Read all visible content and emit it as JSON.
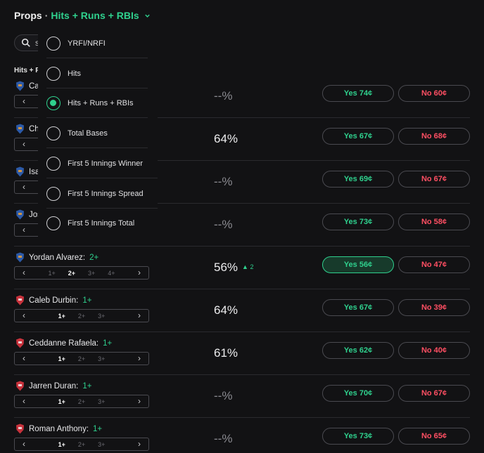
{
  "header": {
    "props_label": "Props",
    "separator": "·",
    "market_label": "Hits + Runs + RBIs"
  },
  "search": {
    "value": "s"
  },
  "section_label": "Hits + R",
  "dropdown": {
    "options": [
      {
        "label": "YRFI/NRFI",
        "selected": false
      },
      {
        "label": "Hits",
        "selected": false
      },
      {
        "label": "Hits + Runs + RBIs",
        "selected": true
      },
      {
        "label": "Total Bases",
        "selected": false
      },
      {
        "label": "First 5 Innings Winner",
        "selected": false
      },
      {
        "label": "First 5 Innings Spread",
        "selected": false
      },
      {
        "label": "First 5 Innings Total",
        "selected": false
      }
    ]
  },
  "rows": [
    {
      "name": "Ca",
      "line": "",
      "team": "blue",
      "steps": [],
      "selected_step": "",
      "pct": "--%",
      "trend": "",
      "yes": "Yes 74¢",
      "no": "No 60¢",
      "yes_active": false
    },
    {
      "name": "Ch",
      "line": "",
      "team": "blue",
      "steps": [],
      "selected_step": "",
      "pct": "64%",
      "trend": "",
      "yes": "Yes 67¢",
      "no": "No 68¢",
      "yes_active": false
    },
    {
      "name": "Isa",
      "line": "",
      "team": "blue",
      "steps": [],
      "selected_step": "",
      "pct": "--%",
      "trend": "",
      "yes": "Yes 69¢",
      "no": "No 67¢",
      "yes_active": false
    },
    {
      "name": "Jos",
      "line": "",
      "team": "blue",
      "steps": [],
      "selected_step": "",
      "pct": "--%",
      "trend": "",
      "yes": "Yes 73¢",
      "no": "No 58¢",
      "yes_active": false
    },
    {
      "name": "Yordan Alvarez:",
      "line": "2+",
      "team": "blue",
      "steps": [
        "1+",
        "2+",
        "3+",
        "4+"
      ],
      "selected_step": "2+",
      "pct": "56%",
      "trend": "▲ 2",
      "yes": "Yes 56¢",
      "no": "No 47¢",
      "yes_active": true
    },
    {
      "name": "Caleb Durbin:",
      "line": "1+",
      "team": "red",
      "steps": [
        "1+",
        "2+",
        "3+"
      ],
      "selected_step": "1+",
      "pct": "64%",
      "trend": "",
      "yes": "Yes 67¢",
      "no": "No 39¢",
      "yes_active": false
    },
    {
      "name": "Ceddanne Rafaela:",
      "line": "1+",
      "team": "red",
      "steps": [
        "1+",
        "2+",
        "3+"
      ],
      "selected_step": "1+",
      "pct": "61%",
      "trend": "",
      "yes": "Yes 62¢",
      "no": "No 40¢",
      "yes_active": false
    },
    {
      "name": "Jarren Duran:",
      "line": "1+",
      "team": "red",
      "steps": [
        "1+",
        "2+",
        "3+"
      ],
      "selected_step": "1+",
      "pct": "--%",
      "trend": "",
      "yes": "Yes 70¢",
      "no": "No 67¢",
      "yes_active": false
    },
    {
      "name": "Roman Anthony:",
      "line": "1+",
      "team": "red",
      "steps": [
        "1+",
        "2+",
        "3+"
      ],
      "selected_step": "1+",
      "pct": "--%",
      "trend": "",
      "yes": "Yes 73¢",
      "no": "No 65¢",
      "yes_active": false
    }
  ],
  "colors": {
    "accent": "#2fd18e",
    "no": "#ff4f63",
    "background": "#121214"
  },
  "icons": {
    "search": "search-icon",
    "chevron": "chevron-down-icon",
    "left": "chevron-left-icon",
    "right": "chevron-right-icon"
  }
}
